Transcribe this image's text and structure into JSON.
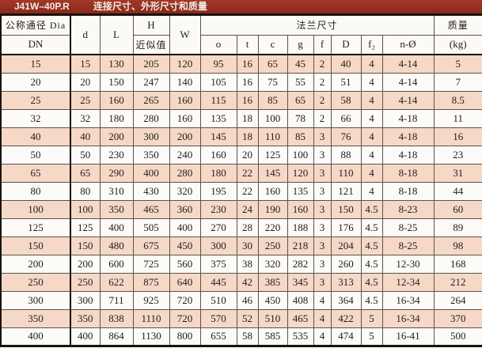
{
  "title": {
    "model": "J41W–40P.R",
    "caption": "连接尺寸、外形尺寸和质量"
  },
  "colors": {
    "title_bg": "#882a1d",
    "title_bg_light": "#a33728",
    "title_text": "#f3ebe1",
    "header_bg": "#fcfaf5",
    "row_bg": "#fdfbf7",
    "row_alt_bg": "#f6d8c6",
    "grid_line": "#5a534c",
    "heavy_line": "#17120e",
    "text": "#211d1a"
  },
  "table": {
    "header": {
      "dn_top": "公称通径 Dia",
      "dn_bottom": "DN",
      "d": "d",
      "L": "L",
      "H_top": "H",
      "H_bottom": "近似值",
      "W": "W",
      "flange_group": "法兰尺寸",
      "flange_cols": [
        "o",
        "t",
        "c",
        "g",
        "f",
        "D",
        "f₂",
        "n-Ø"
      ],
      "weight_top": "质量",
      "weight_bottom": "(kg)"
    },
    "column_keys": [
      "dn",
      "d",
      "L",
      "H",
      "W",
      "o",
      "t",
      "c",
      "g",
      "f",
      "D",
      "f2",
      "n-hole",
      "kg"
    ],
    "rows": [
      [
        15,
        15,
        130,
        205,
        120,
        95,
        16,
        65,
        45,
        2,
        40,
        4,
        "4-14",
        5
      ],
      [
        20,
        20,
        150,
        247,
        140,
        105,
        16,
        75,
        55,
        2,
        51,
        4,
        "4-14",
        7
      ],
      [
        25,
        25,
        160,
        265,
        160,
        115,
        16,
        85,
        65,
        2,
        58,
        4,
        "4-14",
        8.5
      ],
      [
        32,
        32,
        180,
        280,
        160,
        135,
        18,
        100,
        78,
        2,
        66,
        4,
        "4-18",
        11
      ],
      [
        40,
        40,
        200,
        300,
        200,
        145,
        18,
        110,
        85,
        3,
        76,
        4,
        "4-18",
        16
      ],
      [
        50,
        50,
        230,
        350,
        240,
        160,
        20,
        125,
        100,
        3,
        88,
        4,
        "4-18",
        23
      ],
      [
        65,
        65,
        290,
        400,
        280,
        180,
        22,
        145,
        120,
        3,
        110,
        4,
        "8-18",
        31
      ],
      [
        80,
        80,
        310,
        430,
        320,
        195,
        22,
        160,
        135,
        3,
        121,
        4,
        "8-18",
        44
      ],
      [
        100,
        100,
        350,
        465,
        360,
        230,
        24,
        190,
        160,
        3,
        150,
        4.5,
        "8-23",
        60
      ],
      [
        125,
        125,
        400,
        505,
        400,
        270,
        28,
        220,
        188,
        3,
        176,
        4.5,
        "8-25",
        89
      ],
      [
        150,
        150,
        480,
        675,
        450,
        300,
        30,
        250,
        218,
        3,
        204,
        4.5,
        "8-25",
        98
      ],
      [
        200,
        200,
        600,
        725,
        560,
        375,
        38,
        320,
        282,
        3,
        260,
        4.5,
        "12-30",
        168
      ],
      [
        250,
        250,
        622,
        875,
        640,
        445,
        42,
        385,
        345,
        3,
        313,
        4.5,
        "12-34",
        212
      ],
      [
        300,
        300,
        711,
        925,
        720,
        510,
        46,
        450,
        408,
        4,
        364,
        4.5,
        "16-34",
        264
      ],
      [
        350,
        350,
        838,
        1110,
        720,
        570,
        52,
        510,
        465,
        4,
        422,
        5,
        "16-34",
        370
      ],
      [
        400,
        400,
        864,
        1130,
        800,
        655,
        58,
        585,
        535,
        4,
        474,
        5,
        "16-41",
        500
      ]
    ]
  }
}
